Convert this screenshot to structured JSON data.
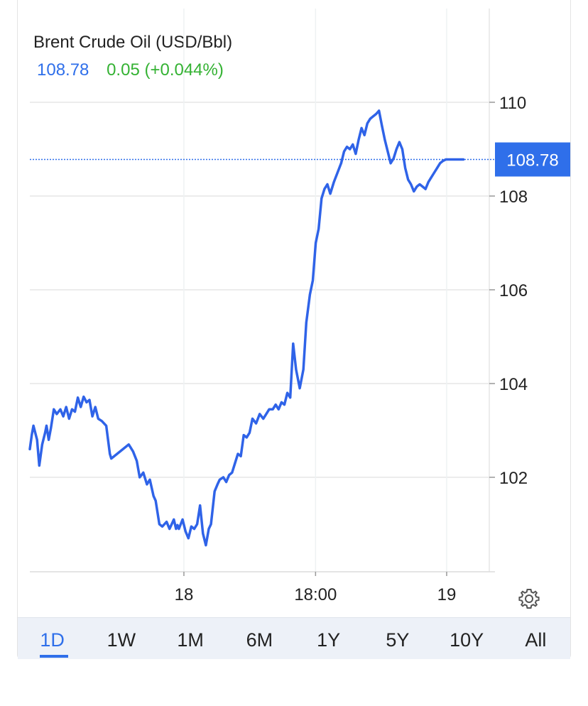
{
  "header": {
    "title": "Brent Crude Oil (USD/Bbl)",
    "last_value": "108.78",
    "change": "0.05 (+0.044%)"
  },
  "colors": {
    "line": "#2f63e8",
    "accent": "#2f6fea",
    "positive": "#34b233"
  },
  "tabs": [
    {
      "label": "1D",
      "active": true
    },
    {
      "label": "1W",
      "active": false
    },
    {
      "label": "1M",
      "active": false
    },
    {
      "label": "6M",
      "active": false
    },
    {
      "label": "1Y",
      "active": false
    },
    {
      "label": "5Y",
      "active": false
    },
    {
      "label": "10Y",
      "active": false
    },
    {
      "label": "All",
      "active": false
    }
  ],
  "settings_icon": "gear-icon",
  "chart_data": {
    "type": "line",
    "title": "Brent Crude Oil (USD/Bbl)",
    "current_value": 108.78,
    "current_label": "108.78",
    "grid": true,
    "y_ticks": [
      {
        "value": 110,
        "label": "110"
      },
      {
        "value": 108,
        "label": "108"
      },
      {
        "value": 106,
        "label": "106"
      },
      {
        "value": 104,
        "label": "104"
      },
      {
        "value": 102,
        "label": "102"
      }
    ],
    "x_ticks": [
      {
        "value": 0.3375,
        "label": "18"
      },
      {
        "value": 0.6313,
        "label": "18:00"
      },
      {
        "value": 0.9239,
        "label": "19"
      }
    ],
    "ylim": [
      100.0,
      110.2
    ],
    "xlim": [
      0,
      1
    ],
    "x": [
      0.0,
      0.0042,
      0.0081,
      0.0162,
      0.0211,
      0.0276,
      0.0341,
      0.0373,
      0.0422,
      0.0471,
      0.0536,
      0.0601,
      0.0682,
      0.0747,
      0.0812,
      0.0877,
      0.0942,
      0.1006,
      0.1071,
      0.1136,
      0.1201,
      0.1266,
      0.1331,
      0.1396,
      0.1461,
      0.1526,
      0.1607,
      0.1705,
      0.1786,
      0.1818,
      0.2208,
      0.2305,
      0.2386,
      0.2451,
      0.2532,
      0.2614,
      0.2679,
      0.276,
      0.2808,
      0.289,
      0.2955,
      0.3052,
      0.3117,
      0.3166,
      0.3214,
      0.3263,
      0.3295,
      0.3327,
      0.3409,
      0.3474,
      0.3539,
      0.3604,
      0.3669,
      0.3734,
      0.3799,
      0.3864,
      0.3929,
      0.3994,
      0.4042,
      0.4123,
      0.4188,
      0.4237,
      0.4318,
      0.4383,
      0.4448,
      0.4513,
      0.4578,
      0.4643,
      0.4708,
      0.4773,
      0.4838,
      0.4903,
      0.4968,
      0.5049,
      0.513,
      0.5211,
      0.5276,
      0.5341,
      0.5422,
      0.5487,
      0.5552,
      0.5617,
      0.5682,
      0.5747,
      0.5812,
      0.5877,
      0.5942,
      0.6023,
      0.6104,
      0.6169,
      0.625,
      0.6315,
      0.638,
      0.6445,
      0.651,
      0.6575,
      0.664,
      0.6705,
      0.6786,
      0.6867,
      0.6948,
      0.7013,
      0.7078,
      0.7143,
      0.7208,
      0.7273,
      0.7338,
      0.7403,
      0.7468,
      0.7533,
      0.7598,
      0.7662,
      0.7727,
      0.7792,
      0.7857,
      0.7922,
      0.7987,
      0.8052,
      0.8117,
      0.8182,
      0.8247,
      0.8312,
      0.8377,
      0.8442,
      0.8506,
      0.8571,
      0.8636,
      0.8701,
      0.8766,
      0.8831,
      0.8896,
      0.8961,
      0.9026,
      0.9091,
      0.9156,
      0.9221,
      0.9286,
      0.9351,
      0.9416,
      0.9481,
      0.9545,
      0.961,
      0.9675
    ],
    "y": [
      102.6,
      102.9,
      103.1,
      102.8,
      102.25,
      102.7,
      102.95,
      103.1,
      102.8,
      103.05,
      103.45,
      103.35,
      103.45,
      103.3,
      103.5,
      103.25,
      103.45,
      103.4,
      103.7,
      103.5,
      103.72,
      103.6,
      103.65,
      103.3,
      103.5,
      103.25,
      103.2,
      103.1,
      102.5,
      102.4,
      102.7,
      102.55,
      102.35,
      102.0,
      102.1,
      101.85,
      101.95,
      101.6,
      101.5,
      101.0,
      100.95,
      101.05,
      100.9,
      101.0,
      101.1,
      100.9,
      100.98,
      100.9,
      101.1,
      100.85,
      100.7,
      100.95,
      100.9,
      101.0,
      101.4,
      100.8,
      100.55,
      100.9,
      101.0,
      101.7,
      101.85,
      101.95,
      102.0,
      101.9,
      102.05,
      102.1,
      102.3,
      102.5,
      102.45,
      102.9,
      102.85,
      102.95,
      103.25,
      103.15,
      103.35,
      103.25,
      103.35,
      103.45,
      103.45,
      103.55,
      103.45,
      103.6,
      103.55,
      103.8,
      103.7,
      104.85,
      104.3,
      103.9,
      104.3,
      105.3,
      105.9,
      106.2,
      107.0,
      107.3,
      107.95,
      108.15,
      108.25,
      108.05,
      108.3,
      108.5,
      108.7,
      108.95,
      109.05,
      109.0,
      109.1,
      108.9,
      109.2,
      109.45,
      109.3,
      109.55,
      109.65,
      109.7,
      109.75,
      109.82,
      109.5,
      109.2,
      108.95,
      108.7,
      108.8,
      109.0,
      109.15,
      109.0,
      108.6,
      108.35,
      108.25,
      108.1,
      108.2,
      108.25,
      108.2,
      108.15,
      108.3,
      108.4,
      108.5,
      108.6,
      108.7,
      108.75,
      108.78,
      108.78,
      108.78,
      108.78,
      108.78,
      108.78,
      108.78
    ]
  }
}
